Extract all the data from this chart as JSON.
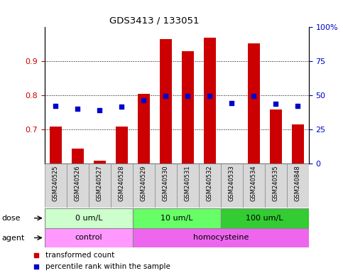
{
  "title": "GDS3413 / 133051",
  "samples": [
    "GSM240525",
    "GSM240526",
    "GSM240527",
    "GSM240528",
    "GSM240529",
    "GSM240530",
    "GSM240531",
    "GSM240532",
    "GSM240533",
    "GSM240534",
    "GSM240535",
    "GSM240848"
  ],
  "transformed_count": [
    0.71,
    0.645,
    0.61,
    0.71,
    0.805,
    0.965,
    0.93,
    0.97,
    0.6,
    0.952,
    0.76,
    0.715
  ],
  "percentile_rank": [
    0.77,
    0.762,
    0.758,
    0.768,
    0.787,
    0.799,
    0.798,
    0.799,
    0.778,
    0.799,
    0.775,
    0.77
  ],
  "ylim_left": [
    0.6,
    1.0
  ],
  "ylim_right": [
    0,
    100
  ],
  "yticks_left": [
    0.7,
    0.8,
    0.9
  ],
  "ytick_labels_left": [
    "0.7",
    "0.8",
    "0.9"
  ],
  "yticks_right_vals": [
    0,
    25,
    50,
    75,
    100
  ],
  "ytick_labels_right": [
    "0",
    "25",
    "50",
    "75",
    "100%"
  ],
  "dose_groups": [
    {
      "label": "0 um/L",
      "start": 0,
      "end": 4,
      "color": "#ccffcc"
    },
    {
      "label": "10 um/L",
      "start": 4,
      "end": 8,
      "color": "#66ff66"
    },
    {
      "label": "100 um/L",
      "start": 8,
      "end": 12,
      "color": "#33cc33"
    }
  ],
  "agent_groups": [
    {
      "label": "control",
      "start": 0,
      "end": 4,
      "color": "#ff99ff"
    },
    {
      "label": "homocysteine",
      "start": 4,
      "end": 12,
      "color": "#ee66ee"
    }
  ],
  "bar_color": "#cc0000",
  "dot_color": "#0000cc",
  "legend_items": [
    {
      "label": "transformed count",
      "color": "#cc0000"
    },
    {
      "label": "percentile rank within the sample",
      "color": "#0000cc"
    }
  ],
  "dose_label": "dose",
  "agent_label": "agent"
}
